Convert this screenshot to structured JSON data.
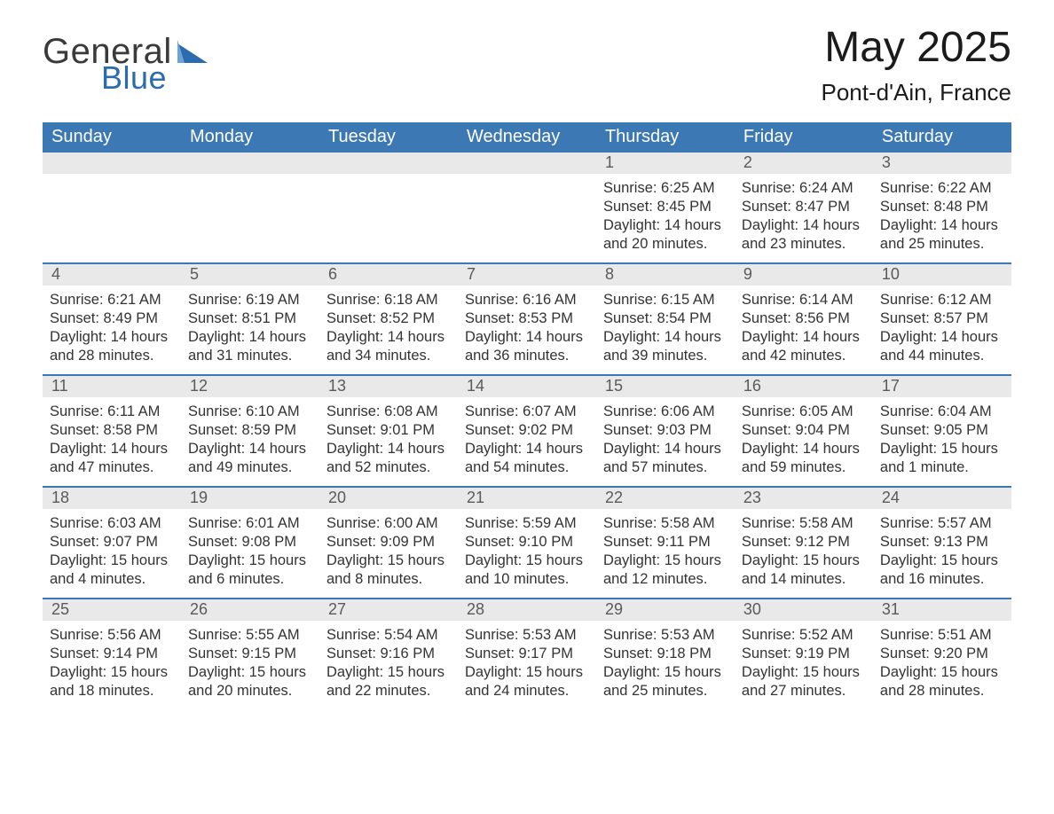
{
  "brand": {
    "word1": "General",
    "word2": "Blue"
  },
  "title": {
    "month": "May 2025",
    "location": "Pont-d'Ain, France"
  },
  "colors": {
    "header_bg": "#3c78b4",
    "header_text": "#ffffff",
    "daynum_bg": "#e9e9e9",
    "daynum_text": "#5a5a5a",
    "body_text": "#333333",
    "week_divider": "#3c78b4",
    "brand_blue": "#2b6cb0",
    "page_bg": "#ffffff"
  },
  "typography": {
    "month_fontsize_pt": 36,
    "location_fontsize_pt": 20,
    "header_fontsize_pt": 15,
    "daynum_fontsize_pt": 13,
    "body_fontsize_pt": 12
  },
  "layout": {
    "columns": 7,
    "rows": 5
  },
  "days_of_week": [
    "Sunday",
    "Monday",
    "Tuesday",
    "Wednesday",
    "Thursday",
    "Friday",
    "Saturday"
  ],
  "weeks": [
    [
      {
        "day": "",
        "sunrise": "",
        "sunset": "",
        "daylight": ""
      },
      {
        "day": "",
        "sunrise": "",
        "sunset": "",
        "daylight": ""
      },
      {
        "day": "",
        "sunrise": "",
        "sunset": "",
        "daylight": ""
      },
      {
        "day": "",
        "sunrise": "",
        "sunset": "",
        "daylight": ""
      },
      {
        "day": "1",
        "sunrise": "Sunrise: 6:25 AM",
        "sunset": "Sunset: 8:45 PM",
        "daylight": "Daylight: 14 hours and 20 minutes."
      },
      {
        "day": "2",
        "sunrise": "Sunrise: 6:24 AM",
        "sunset": "Sunset: 8:47 PM",
        "daylight": "Daylight: 14 hours and 23 minutes."
      },
      {
        "day": "3",
        "sunrise": "Sunrise: 6:22 AM",
        "sunset": "Sunset: 8:48 PM",
        "daylight": "Daylight: 14 hours and 25 minutes."
      }
    ],
    [
      {
        "day": "4",
        "sunrise": "Sunrise: 6:21 AM",
        "sunset": "Sunset: 8:49 PM",
        "daylight": "Daylight: 14 hours and 28 minutes."
      },
      {
        "day": "5",
        "sunrise": "Sunrise: 6:19 AM",
        "sunset": "Sunset: 8:51 PM",
        "daylight": "Daylight: 14 hours and 31 minutes."
      },
      {
        "day": "6",
        "sunrise": "Sunrise: 6:18 AM",
        "sunset": "Sunset: 8:52 PM",
        "daylight": "Daylight: 14 hours and 34 minutes."
      },
      {
        "day": "7",
        "sunrise": "Sunrise: 6:16 AM",
        "sunset": "Sunset: 8:53 PM",
        "daylight": "Daylight: 14 hours and 36 minutes."
      },
      {
        "day": "8",
        "sunrise": "Sunrise: 6:15 AM",
        "sunset": "Sunset: 8:54 PM",
        "daylight": "Daylight: 14 hours and 39 minutes."
      },
      {
        "day": "9",
        "sunrise": "Sunrise: 6:14 AM",
        "sunset": "Sunset: 8:56 PM",
        "daylight": "Daylight: 14 hours and 42 minutes."
      },
      {
        "day": "10",
        "sunrise": "Sunrise: 6:12 AM",
        "sunset": "Sunset: 8:57 PM",
        "daylight": "Daylight: 14 hours and 44 minutes."
      }
    ],
    [
      {
        "day": "11",
        "sunrise": "Sunrise: 6:11 AM",
        "sunset": "Sunset: 8:58 PM",
        "daylight": "Daylight: 14 hours and 47 minutes."
      },
      {
        "day": "12",
        "sunrise": "Sunrise: 6:10 AM",
        "sunset": "Sunset: 8:59 PM",
        "daylight": "Daylight: 14 hours and 49 minutes."
      },
      {
        "day": "13",
        "sunrise": "Sunrise: 6:08 AM",
        "sunset": "Sunset: 9:01 PM",
        "daylight": "Daylight: 14 hours and 52 minutes."
      },
      {
        "day": "14",
        "sunrise": "Sunrise: 6:07 AM",
        "sunset": "Sunset: 9:02 PM",
        "daylight": "Daylight: 14 hours and 54 minutes."
      },
      {
        "day": "15",
        "sunrise": "Sunrise: 6:06 AM",
        "sunset": "Sunset: 9:03 PM",
        "daylight": "Daylight: 14 hours and 57 minutes."
      },
      {
        "day": "16",
        "sunrise": "Sunrise: 6:05 AM",
        "sunset": "Sunset: 9:04 PM",
        "daylight": "Daylight: 14 hours and 59 minutes."
      },
      {
        "day": "17",
        "sunrise": "Sunrise: 6:04 AM",
        "sunset": "Sunset: 9:05 PM",
        "daylight": "Daylight: 15 hours and 1 minute."
      }
    ],
    [
      {
        "day": "18",
        "sunrise": "Sunrise: 6:03 AM",
        "sunset": "Sunset: 9:07 PM",
        "daylight": "Daylight: 15 hours and 4 minutes."
      },
      {
        "day": "19",
        "sunrise": "Sunrise: 6:01 AM",
        "sunset": "Sunset: 9:08 PM",
        "daylight": "Daylight: 15 hours and 6 minutes."
      },
      {
        "day": "20",
        "sunrise": "Sunrise: 6:00 AM",
        "sunset": "Sunset: 9:09 PM",
        "daylight": "Daylight: 15 hours and 8 minutes."
      },
      {
        "day": "21",
        "sunrise": "Sunrise: 5:59 AM",
        "sunset": "Sunset: 9:10 PM",
        "daylight": "Daylight: 15 hours and 10 minutes."
      },
      {
        "day": "22",
        "sunrise": "Sunrise: 5:58 AM",
        "sunset": "Sunset: 9:11 PM",
        "daylight": "Daylight: 15 hours and 12 minutes."
      },
      {
        "day": "23",
        "sunrise": "Sunrise: 5:58 AM",
        "sunset": "Sunset: 9:12 PM",
        "daylight": "Daylight: 15 hours and 14 minutes."
      },
      {
        "day": "24",
        "sunrise": "Sunrise: 5:57 AM",
        "sunset": "Sunset: 9:13 PM",
        "daylight": "Daylight: 15 hours and 16 minutes."
      }
    ],
    [
      {
        "day": "25",
        "sunrise": "Sunrise: 5:56 AM",
        "sunset": "Sunset: 9:14 PM",
        "daylight": "Daylight: 15 hours and 18 minutes."
      },
      {
        "day": "26",
        "sunrise": "Sunrise: 5:55 AM",
        "sunset": "Sunset: 9:15 PM",
        "daylight": "Daylight: 15 hours and 20 minutes."
      },
      {
        "day": "27",
        "sunrise": "Sunrise: 5:54 AM",
        "sunset": "Sunset: 9:16 PM",
        "daylight": "Daylight: 15 hours and 22 minutes."
      },
      {
        "day": "28",
        "sunrise": "Sunrise: 5:53 AM",
        "sunset": "Sunset: 9:17 PM",
        "daylight": "Daylight: 15 hours and 24 minutes."
      },
      {
        "day": "29",
        "sunrise": "Sunrise: 5:53 AM",
        "sunset": "Sunset: 9:18 PM",
        "daylight": "Daylight: 15 hours and 25 minutes."
      },
      {
        "day": "30",
        "sunrise": "Sunrise: 5:52 AM",
        "sunset": "Sunset: 9:19 PM",
        "daylight": "Daylight: 15 hours and 27 minutes."
      },
      {
        "day": "31",
        "sunrise": "Sunrise: 5:51 AM",
        "sunset": "Sunset: 9:20 PM",
        "daylight": "Daylight: 15 hours and 28 minutes."
      }
    ]
  ]
}
